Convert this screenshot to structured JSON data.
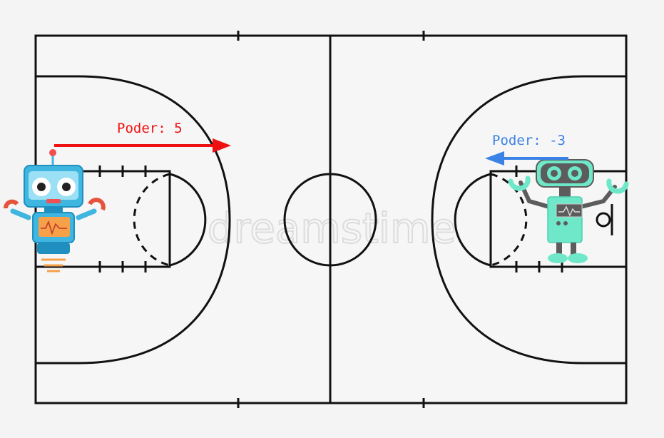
{
  "court": {
    "line_color": "#111111",
    "background": "#f5f5f5"
  },
  "watermark": {
    "text": "dreamstime"
  },
  "robot_left": {
    "icon": "robot-blue-icon",
    "power_label": "Poder: 5",
    "power_value": 5,
    "arrow_direction": "right",
    "arrow_color": "#ee1111",
    "body_color": "#3fb6e0",
    "screen_color": "#f6a14a"
  },
  "robot_right": {
    "icon": "robot-mint-icon",
    "power_label": "Poder: -3",
    "power_value": -3,
    "arrow_direction": "left",
    "arrow_color": "#3b82e6",
    "body_color": "#6ee8c9",
    "frame_color": "#5c5c5c"
  }
}
